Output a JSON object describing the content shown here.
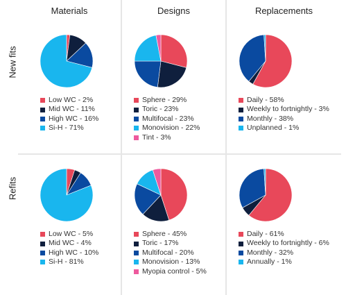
{
  "columns": [
    "Materials",
    "Designs",
    "Replacements"
  ],
  "rows": [
    "New fits",
    "Refits"
  ],
  "chart_data": [
    {
      "type": "pie",
      "row": "New fits",
      "column": "Materials",
      "categories": [
        "Low WC",
        "Mid WC",
        "High WC",
        "Si-H"
      ],
      "values": [
        2,
        11,
        16,
        71
      ],
      "labels": [
        "Low WC - 2%",
        "Mid WC - 11%",
        "High WC - 16%",
        "Si-H - 71%"
      ],
      "colors": [
        "#e8485a",
        "#0f1f3d",
        "#0a4aa0",
        "#19b6ee"
      ]
    },
    {
      "type": "pie",
      "row": "New fits",
      "column": "Designs",
      "categories": [
        "Sphere",
        "Toric",
        "Multifocal",
        "Monovision",
        "Tint"
      ],
      "values": [
        29,
        23,
        23,
        22,
        3
      ],
      "labels": [
        "Sphere - 29%",
        "Toric - 23%",
        "Multifocal - 23%",
        "Monovision - 22%",
        "Tint - 3%"
      ],
      "colors": [
        "#e8485a",
        "#0f1f3d",
        "#0a4aa0",
        "#19b6ee",
        "#ee5a9e"
      ]
    },
    {
      "type": "pie",
      "row": "New fits",
      "column": "Replacements",
      "categories": [
        "Daily",
        "Weekly to fortnightly",
        "Monthly",
        "Unplanned"
      ],
      "values": [
        58,
        3,
        38,
        1
      ],
      "labels": [
        "Daily - 58%",
        "Weekly to fortnightly - 3%",
        "Monthly - 38%",
        "Unplanned - 1%"
      ],
      "colors": [
        "#e8485a",
        "#0f1f3d",
        "#0a4aa0",
        "#19b6ee"
      ]
    },
    {
      "type": "pie",
      "row": "Refits",
      "column": "Materials",
      "categories": [
        "Low WC",
        "Mid WC",
        "High WC",
        "Si-H"
      ],
      "values": [
        5,
        4,
        10,
        81
      ],
      "labels": [
        "Low WC - 5%",
        "Mid WC - 4%",
        "High WC - 10%",
        "Si-H - 81%"
      ],
      "colors": [
        "#e8485a",
        "#0f1f3d",
        "#0a4aa0",
        "#19b6ee"
      ]
    },
    {
      "type": "pie",
      "row": "Refits",
      "column": "Designs",
      "categories": [
        "Sphere",
        "Toric",
        "Multifocal",
        "Monovision",
        "Myopia control"
      ],
      "values": [
        45,
        17,
        20,
        13,
        5
      ],
      "labels": [
        "Sphere - 45%",
        "Toric - 17%",
        "Multifocal - 20%",
        "Monovision - 13%",
        "Myopia control - 5%"
      ],
      "colors": [
        "#e8485a",
        "#0f1f3d",
        "#0a4aa0",
        "#19b6ee",
        "#ee5a9e"
      ]
    },
    {
      "type": "pie",
      "row": "Refits",
      "column": "Replacements",
      "categories": [
        "Daily",
        "Weekly to fortnightly",
        "Monthly",
        "Annually"
      ],
      "values": [
        61,
        6,
        32,
        1
      ],
      "labels": [
        "Daily - 61%",
        "Weekly to fortnightly - 6%",
        "Monthly - 32%",
        "Annually - 1%"
      ],
      "colors": [
        "#e8485a",
        "#0f1f3d",
        "#0a4aa0",
        "#19b6ee"
      ]
    }
  ]
}
